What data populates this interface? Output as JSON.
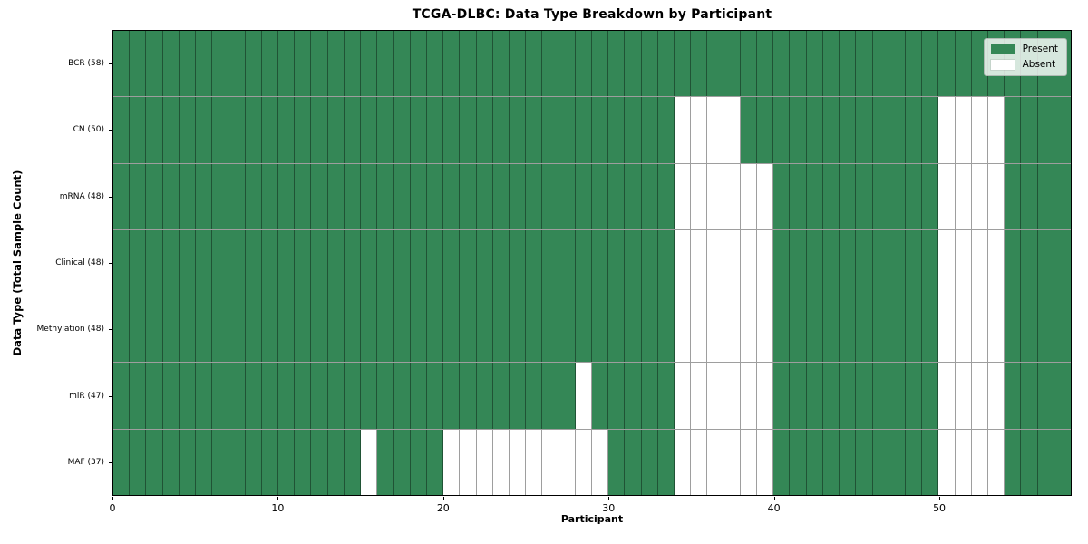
{
  "title": "TCGA-DLBC: Data Type Breakdown by Participant",
  "x_axis": {
    "label": "Participant",
    "ticks": [
      0,
      10,
      20,
      30,
      40,
      50
    ]
  },
  "y_axis": {
    "label": "Data Type (Total Sample Count)"
  },
  "legend": {
    "present": "Present",
    "absent": "Absent"
  },
  "colors": {
    "present": "#348756",
    "absent": "#ffffff",
    "grid_line": "rgba(0,0,0,0.38)",
    "spine": "#000000",
    "legend_bg": "rgba(255,255,255,0.8)",
    "legend_border": "#b0bab4"
  },
  "chart_data": {
    "type": "heatmap",
    "title": "TCGA-DLBC: Data Type Breakdown by Participant",
    "xlabel": "Participant",
    "ylabel": "Data Type (Total Sample Count)",
    "x_ticks": [
      0,
      10,
      20,
      30,
      40,
      50
    ],
    "x_range": [
      0,
      58
    ],
    "n_participants": 58,
    "grid": true,
    "legend_position": "upper right",
    "legend": [
      {
        "label": "Present",
        "color": "#348756"
      },
      {
        "label": "Absent",
        "color": "#ffffff"
      }
    ],
    "value_encoding": {
      "present": 1,
      "absent": 0
    },
    "rows": [
      {
        "label": "BCR (58)",
        "data_type": "BCR",
        "total_samples": 58,
        "absent_participants": []
      },
      {
        "label": "CN (50)",
        "data_type": "CN",
        "total_samples": 50,
        "absent_participants": [
          34,
          35,
          36,
          37,
          50,
          51,
          52,
          53
        ]
      },
      {
        "label": "mRNA (48)",
        "data_type": "mRNA",
        "total_samples": 48,
        "absent_participants": [
          34,
          35,
          36,
          37,
          38,
          39,
          50,
          51,
          52,
          53
        ]
      },
      {
        "label": "Clinical (48)",
        "data_type": "Clinical",
        "total_samples": 48,
        "absent_participants": [
          34,
          35,
          36,
          37,
          38,
          39,
          50,
          51,
          52,
          53
        ]
      },
      {
        "label": "Methylation (48)",
        "data_type": "Methylation",
        "total_samples": 48,
        "absent_participants": [
          34,
          35,
          36,
          37,
          38,
          39,
          50,
          51,
          52,
          53
        ]
      },
      {
        "label": "miR (47)",
        "data_type": "miR",
        "total_samples": 47,
        "absent_participants": [
          28,
          34,
          35,
          36,
          37,
          38,
          39,
          50,
          51,
          52,
          53
        ]
      },
      {
        "label": "MAF (37)",
        "data_type": "MAF",
        "total_samples": 37,
        "absent_participants": [
          15,
          20,
          21,
          22,
          23,
          24,
          25,
          26,
          27,
          28,
          29,
          34,
          35,
          36,
          37,
          38,
          39,
          50,
          51,
          52,
          53
        ]
      }
    ]
  }
}
